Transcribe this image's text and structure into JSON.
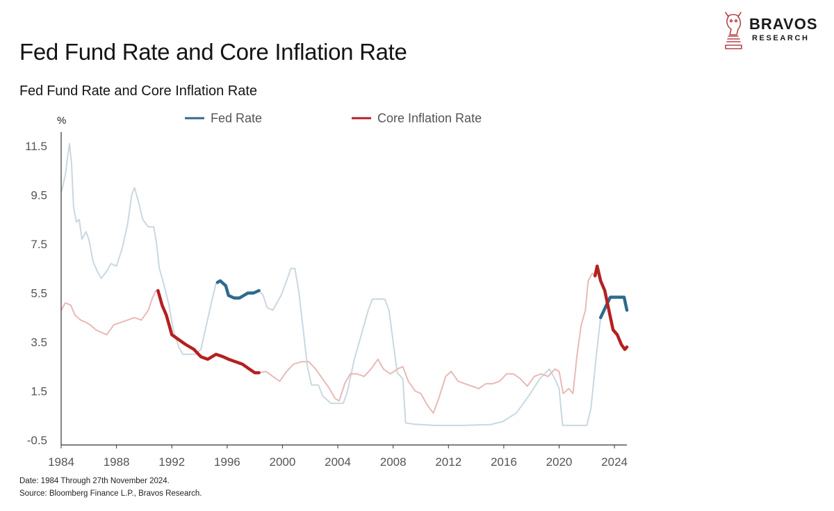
{
  "logo": {
    "name": "BRAVOS",
    "sub": "RESEARCH",
    "icon": "knight-chess-piece-icon",
    "color": "#b5434a"
  },
  "header": {
    "title": "Fed Fund Rate and Core Inflation Rate",
    "subtitle_bold": "Fed Fund Rate",
    "subtitle_rest": " and Core Inflation Rate"
  },
  "footer": {
    "date": "Date: 1984 Through 27th November 2024.",
    "source": "Source: Bloomberg Finance L.P., Bravos Research."
  },
  "colors": {
    "fed": "#2e6a8c",
    "fed_light": "#c9d8e0",
    "cpi": "#b52020",
    "cpi_light": "#eab8b8",
    "axis": "#333333",
    "tick_text": "#555555"
  },
  "chart_data": {
    "type": "line",
    "ylabel": "%",
    "xlabel": "",
    "xlim": [
      1984,
      2024.9
    ],
    "ylim": [
      -0.5,
      12
    ],
    "x_ticks": [
      "1984",
      "1988",
      "1992",
      "1996",
      "2000",
      "2004",
      "2008",
      "2012",
      "2016",
      "2020",
      "2024"
    ],
    "y_ticks": [
      "-0.5",
      "1.5",
      "3.5",
      "5.5",
      "7.5",
      "9.5",
      "11.5"
    ],
    "legend": {
      "position": "top-center"
    },
    "series": [
      {
        "name": "Fed Rate",
        "color": "#2e6a8c",
        "highlight_ranges": [
          [
            1995.3,
            1998.3
          ],
          [
            2023.0,
            2024.9
          ]
        ],
        "points": [
          [
            1984.0,
            9.6
          ],
          [
            1984.3,
            10.3
          ],
          [
            1984.45,
            11.0
          ],
          [
            1984.6,
            11.6
          ],
          [
            1984.75,
            10.8
          ],
          [
            1984.9,
            9.0
          ],
          [
            1985.1,
            8.4
          ],
          [
            1985.3,
            8.5
          ],
          [
            1985.5,
            7.7
          ],
          [
            1985.8,
            8.0
          ],
          [
            1986.0,
            7.7
          ],
          [
            1986.3,
            6.8
          ],
          [
            1986.6,
            6.4
          ],
          [
            1986.9,
            6.1
          ],
          [
            1987.3,
            6.4
          ],
          [
            1987.6,
            6.7
          ],
          [
            1988.0,
            6.6
          ],
          [
            1988.4,
            7.3
          ],
          [
            1988.8,
            8.3
          ],
          [
            1989.1,
            9.5
          ],
          [
            1989.3,
            9.8
          ],
          [
            1989.6,
            9.2
          ],
          [
            1989.9,
            8.5
          ],
          [
            1990.3,
            8.2
          ],
          [
            1990.7,
            8.2
          ],
          [
            1990.9,
            7.5
          ],
          [
            1991.1,
            6.5
          ],
          [
            1991.4,
            5.9
          ],
          [
            1991.8,
            5.0
          ],
          [
            1992.1,
            4.0
          ],
          [
            1992.5,
            3.3
          ],
          [
            1992.8,
            3.0
          ],
          [
            1993.3,
            3.0
          ],
          [
            1993.7,
            3.0
          ],
          [
            1994.1,
            3.2
          ],
          [
            1994.5,
            4.2
          ],
          [
            1994.9,
            5.2
          ],
          [
            1995.2,
            5.9
          ],
          [
            1995.5,
            6.0
          ],
          [
            1995.9,
            5.8
          ],
          [
            1996.1,
            5.4
          ],
          [
            1996.5,
            5.3
          ],
          [
            1996.9,
            5.3
          ],
          [
            1997.2,
            5.4
          ],
          [
            1997.5,
            5.5
          ],
          [
            1997.9,
            5.5
          ],
          [
            1998.3,
            5.6
          ],
          [
            1998.6,
            5.4
          ],
          [
            1998.9,
            4.9
          ],
          [
            1999.3,
            4.8
          ],
          [
            1999.6,
            5.1
          ],
          [
            1999.9,
            5.4
          ],
          [
            2000.3,
            6.0
          ],
          [
            2000.6,
            6.5
          ],
          [
            2000.9,
            6.5
          ],
          [
            2001.2,
            5.5
          ],
          [
            2001.5,
            4.0
          ],
          [
            2001.8,
            2.5
          ],
          [
            2002.1,
            1.75
          ],
          [
            2002.6,
            1.75
          ],
          [
            2002.9,
            1.3
          ],
          [
            2003.5,
            1.0
          ],
          [
            2004.0,
            1.0
          ],
          [
            2004.4,
            1.0
          ],
          [
            2004.7,
            1.5
          ],
          [
            2005.2,
            2.8
          ],
          [
            2005.7,
            3.8
          ],
          [
            2006.2,
            4.8
          ],
          [
            2006.5,
            5.25
          ],
          [
            2007.4,
            5.25
          ],
          [
            2007.7,
            4.8
          ],
          [
            2008.0,
            3.5
          ],
          [
            2008.3,
            2.25
          ],
          [
            2008.7,
            2.0
          ],
          [
            2008.9,
            0.2
          ],
          [
            2009.5,
            0.15
          ],
          [
            2011.0,
            0.1
          ],
          [
            2013.0,
            0.1
          ],
          [
            2015.0,
            0.13
          ],
          [
            2015.9,
            0.25
          ],
          [
            2016.9,
            0.6
          ],
          [
            2017.8,
            1.3
          ],
          [
            2018.6,
            2.0
          ],
          [
            2019.3,
            2.4
          ],
          [
            2019.7,
            2.0
          ],
          [
            2020.0,
            1.6
          ],
          [
            2020.25,
            0.1
          ],
          [
            2021.0,
            0.1
          ],
          [
            2022.0,
            0.1
          ],
          [
            2022.3,
            0.8
          ],
          [
            2022.7,
            3.0
          ],
          [
            2023.0,
            4.5
          ],
          [
            2023.5,
            5.1
          ],
          [
            2023.7,
            5.33
          ],
          [
            2024.7,
            5.33
          ],
          [
            2024.9,
            4.8
          ]
        ]
      },
      {
        "name": "Core Inflation Rate",
        "color": "#b52020",
        "highlight_ranges": [
          [
            1991.0,
            1998.3
          ],
          [
            2022.6,
            2024.9
          ]
        ],
        "points": [
          [
            1984.0,
            4.8
          ],
          [
            1984.3,
            5.1
          ],
          [
            1984.7,
            5.0
          ],
          [
            1985.0,
            4.6
          ],
          [
            1985.4,
            4.4
          ],
          [
            1985.8,
            4.3
          ],
          [
            1986.1,
            4.2
          ],
          [
            1986.5,
            4.0
          ],
          [
            1986.9,
            3.9
          ],
          [
            1987.3,
            3.8
          ],
          [
            1987.8,
            4.2
          ],
          [
            1988.3,
            4.3
          ],
          [
            1988.8,
            4.4
          ],
          [
            1989.3,
            4.5
          ],
          [
            1989.8,
            4.4
          ],
          [
            1990.3,
            4.8
          ],
          [
            1990.6,
            5.3
          ],
          [
            1990.85,
            5.6
          ],
          [
            1991.0,
            5.6
          ],
          [
            1991.3,
            5.0
          ],
          [
            1991.6,
            4.6
          ],
          [
            1992.0,
            3.8
          ],
          [
            1992.5,
            3.6
          ],
          [
            1993.0,
            3.4
          ],
          [
            1993.6,
            3.2
          ],
          [
            1994.1,
            2.9
          ],
          [
            1994.6,
            2.8
          ],
          [
            1995.2,
            3.0
          ],
          [
            1995.7,
            2.9
          ],
          [
            1996.1,
            2.8
          ],
          [
            1996.6,
            2.7
          ],
          [
            1997.1,
            2.6
          ],
          [
            1997.6,
            2.4
          ],
          [
            1998.0,
            2.25
          ],
          [
            1998.3,
            2.25
          ],
          [
            1998.8,
            2.3
          ],
          [
            1999.3,
            2.1
          ],
          [
            1999.8,
            1.9
          ],
          [
            2000.3,
            2.3
          ],
          [
            2000.8,
            2.6
          ],
          [
            2001.4,
            2.7
          ],
          [
            2001.9,
            2.7
          ],
          [
            2002.4,
            2.4
          ],
          [
            2002.9,
            2.0
          ],
          [
            2003.4,
            1.6
          ],
          [
            2003.8,
            1.2
          ],
          [
            2004.1,
            1.1
          ],
          [
            2004.5,
            1.8
          ],
          [
            2004.9,
            2.2
          ],
          [
            2005.4,
            2.2
          ],
          [
            2005.9,
            2.1
          ],
          [
            2006.4,
            2.4
          ],
          [
            2006.9,
            2.8
          ],
          [
            2007.3,
            2.4
          ],
          [
            2007.8,
            2.2
          ],
          [
            2008.3,
            2.4
          ],
          [
            2008.7,
            2.5
          ],
          [
            2009.1,
            1.9
          ],
          [
            2009.6,
            1.5
          ],
          [
            2010.0,
            1.4
          ],
          [
            2010.5,
            0.9
          ],
          [
            2010.9,
            0.6
          ],
          [
            2011.3,
            1.2
          ],
          [
            2011.8,
            2.1
          ],
          [
            2012.2,
            2.3
          ],
          [
            2012.7,
            1.9
          ],
          [
            2013.2,
            1.8
          ],
          [
            2013.7,
            1.7
          ],
          [
            2014.2,
            1.6
          ],
          [
            2014.7,
            1.8
          ],
          [
            2015.2,
            1.8
          ],
          [
            2015.7,
            1.9
          ],
          [
            2016.2,
            2.2
          ],
          [
            2016.7,
            2.2
          ],
          [
            2017.2,
            2.0
          ],
          [
            2017.7,
            1.7
          ],
          [
            2018.2,
            2.1
          ],
          [
            2018.7,
            2.2
          ],
          [
            2019.2,
            2.1
          ],
          [
            2019.7,
            2.4
          ],
          [
            2020.0,
            2.3
          ],
          [
            2020.3,
            1.4
          ],
          [
            2020.7,
            1.6
          ],
          [
            2021.0,
            1.4
          ],
          [
            2021.3,
            3.0
          ],
          [
            2021.6,
            4.2
          ],
          [
            2021.9,
            4.8
          ],
          [
            2022.1,
            6.0
          ],
          [
            2022.4,
            6.3
          ],
          [
            2022.6,
            6.2
          ],
          [
            2022.75,
            6.6
          ],
          [
            2023.0,
            6.0
          ],
          [
            2023.3,
            5.6
          ],
          [
            2023.6,
            4.8
          ],
          [
            2023.9,
            4.0
          ],
          [
            2024.2,
            3.8
          ],
          [
            2024.5,
            3.4
          ],
          [
            2024.75,
            3.2
          ],
          [
            2024.9,
            3.3
          ]
        ]
      }
    ]
  }
}
